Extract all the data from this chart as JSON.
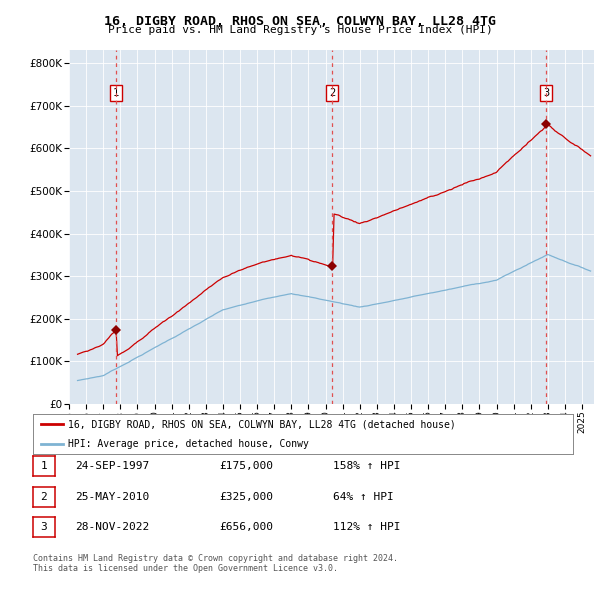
{
  "title": "16, DIGBY ROAD, RHOS ON SEA, COLWYN BAY, LL28 4TG",
  "subtitle": "Price paid vs. HM Land Registry's House Price Index (HPI)",
  "background_color": "#dce6f0",
  "plot_bg_color": "#dce6f0",
  "ylim": [
    0,
    830000
  ],
  "yticks": [
    0,
    100000,
    200000,
    300000,
    400000,
    500000,
    600000,
    700000,
    800000
  ],
  "ytick_labels": [
    "£0",
    "£100K",
    "£200K",
    "£300K",
    "£400K",
    "£500K",
    "£600K",
    "£700K",
    "£800K"
  ],
  "xlim_start": 1995.3,
  "xlim_end": 2025.7,
  "red_line_color": "#cc0000",
  "blue_line_color": "#7fb3d3",
  "dashed_line_color": "#e05050",
  "sale_marker_color": "#8b0000",
  "sale1_x": 1997.73,
  "sale1_y": 175000,
  "sale2_x": 2010.39,
  "sale2_y": 325000,
  "sale3_x": 2022.91,
  "sale3_y": 656000,
  "legend_label_red": "16, DIGBY ROAD, RHOS ON SEA, COLWYN BAY, LL28 4TG (detached house)",
  "legend_label_blue": "HPI: Average price, detached house, Conwy",
  "table_rows": [
    {
      "num": "1",
      "date": "24-SEP-1997",
      "price": "£175,000",
      "hpi": "158% ↑ HPI"
    },
    {
      "num": "2",
      "date": "25-MAY-2010",
      "price": "£325,000",
      "hpi": "64% ↑ HPI"
    },
    {
      "num": "3",
      "date": "28-NOV-2022",
      "price": "£656,000",
      "hpi": "112% ↑ HPI"
    }
  ],
  "footnote1": "Contains HM Land Registry data © Crown copyright and database right 2024.",
  "footnote2": "This data is licensed under the Open Government Licence v3.0."
}
